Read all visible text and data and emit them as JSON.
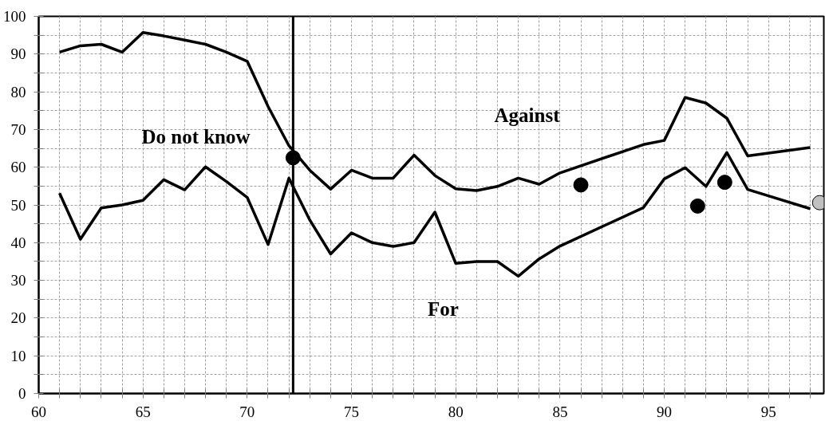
{
  "chart_data": {
    "type": "line",
    "xlim": [
      60,
      97.65
    ],
    "ylim": [
      0,
      100
    ],
    "xticks": [
      60,
      {
        "value": 61,
        "label": null
      },
      {
        "value": 62,
        "label": null
      },
      {
        "value": 63,
        "label": null
      },
      {
        "value": 64,
        "label": null
      },
      65,
      {
        "value": 66,
        "label": null
      },
      {
        "value": 67,
        "label": null
      },
      {
        "value": 68,
        "label": null
      },
      {
        "value": 69,
        "label": null
      },
      70,
      {
        "value": 71,
        "label": null
      },
      {
        "value": 72,
        "label": null
      },
      {
        "value": 73,
        "label": null
      },
      {
        "value": 74,
        "label": null
      },
      75,
      {
        "value": 76,
        "label": null
      },
      {
        "value": 77,
        "label": null
      },
      {
        "value": 78,
        "label": null
      },
      {
        "value": 79,
        "label": null
      },
      80,
      {
        "value": 81,
        "label": null
      },
      {
        "value": 82,
        "label": null
      },
      {
        "value": 83,
        "label": null
      },
      {
        "value": 84,
        "label": null
      },
      85,
      {
        "value": 86,
        "label": null
      },
      {
        "value": 87,
        "label": null
      },
      {
        "value": 88,
        "label": null
      },
      {
        "value": 89,
        "label": null
      },
      90,
      {
        "value": 91,
        "label": null
      },
      {
        "value": 92,
        "label": null
      },
      {
        "value": 93,
        "label": null
      },
      {
        "value": 94,
        "label": null
      },
      95,
      {
        "value": 96,
        "label": null
      },
      {
        "value": 97,
        "label": null
      }
    ],
    "yticks": [
      0,
      {
        "value": 5,
        "label": null
      },
      10,
      {
        "value": 15,
        "label": null
      },
      20,
      {
        "value": 25,
        "label": null
      },
      30,
      {
        "value": 35,
        "label": null
      },
      40,
      {
        "value": 45,
        "label": null
      },
      50,
      {
        "value": 55,
        "label": null
      },
      60,
      {
        "value": 65,
        "label": null
      },
      70,
      {
        "value": 75,
        "label": null
      },
      80,
      {
        "value": 85,
        "label": null
      },
      90,
      {
        "value": 95,
        "label": null
      },
      100
    ],
    "grid": true,
    "line_style": "solid",
    "marker": "none",
    "series": [
      {
        "color": "#000000",
        "x": [
          61,
          62,
          63,
          64,
          65,
          66,
          67,
          68,
          69,
          70,
          71,
          72,
          73,
          74,
          75,
          76,
          77,
          78,
          79,
          80,
          81,
          82,
          83,
          84,
          85,
          89,
          90,
          91,
          92,
          93,
          94,
          97
        ],
        "values": [
          90.5,
          92.2,
          92.6,
          90.5,
          95.7,
          94.8,
          93.7,
          92.6,
          90.5,
          88.1,
          76.1,
          65.7,
          59.2,
          54.2,
          59.2,
          57.1,
          57.1,
          63.2,
          57.8,
          54.3,
          53.8,
          54.9,
          57.1,
          55.5,
          58.5,
          66.0,
          67.1,
          78.5,
          77.0,
          73.0,
          63.0,
          65.2
        ]
      },
      {
        "color": "#000000",
        "x": [
          61,
          62,
          63,
          64,
          65,
          66,
          67,
          68,
          69,
          70,
          71,
          72,
          73,
          74,
          75,
          76,
          77,
          78,
          79,
          80,
          81,
          82,
          83,
          84,
          85,
          89,
          90,
          91,
          92,
          93,
          94,
          97
        ],
        "values": [
          53.1,
          40.9,
          49.2,
          50.0,
          51.2,
          56.7,
          54.0,
          60.1,
          56.2,
          52.0,
          39.5,
          57.1,
          46.0,
          37.0,
          42.6,
          40.0,
          39.0,
          40.0,
          48.1,
          34.5,
          35.0,
          35.0,
          31.1,
          35.7,
          39.1,
          49.3,
          56.9,
          59.9,
          54.9,
          63.9,
          54.1,
          49.0
        ]
      },
      {
        "type": "scatter",
        "marker": "circle",
        "color": "#000000",
        "x": [
          72.2,
          86.0,
          91.6,
          92.9
        ],
        "values": [
          62.5,
          55.3,
          49.7,
          56.0
        ]
      },
      {
        "type": "scatter",
        "marker": "circle",
        "color": "#c0c0c0",
        "x": [
          97.45
        ],
        "values": [
          50.6
        ]
      }
    ],
    "ref_lines": [
      {
        "axis": "x",
        "value": 72.2,
        "color": "#000000"
      }
    ],
    "annotations": [
      "Do not know",
      "Against",
      "For"
    ]
  }
}
